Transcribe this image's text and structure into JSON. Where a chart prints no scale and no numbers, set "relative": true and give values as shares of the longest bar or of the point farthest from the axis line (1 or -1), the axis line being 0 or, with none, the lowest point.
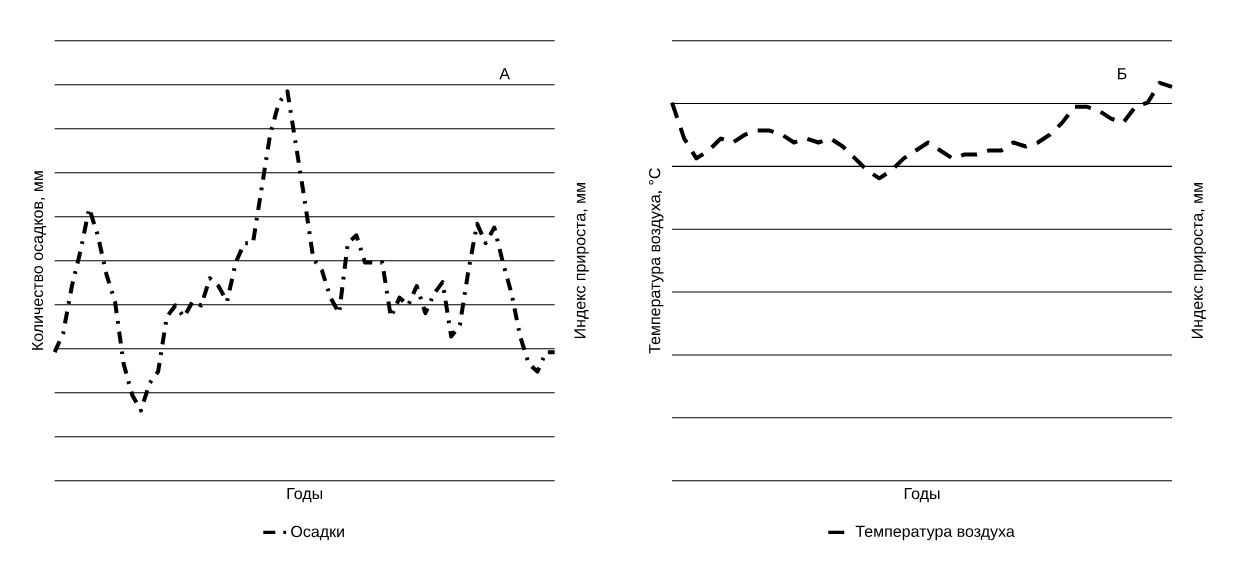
{
  "chart_data": [
    {
      "type": "line",
      "title": "А",
      "xlabel": "Годы",
      "ylabel": "Количество осадков, мм",
      "y2label": "Индекс прироста, мм",
      "relative": true,
      "grid": "y",
      "legend": "bottom",
      "line_style": "dashdot",
      "categories": [
        null,
        null,
        null,
        null,
        null,
        null,
        null,
        null,
        null,
        null,
        null,
        null,
        null,
        null,
        null,
        null,
        null,
        null,
        null,
        null,
        null,
        null,
        null,
        null,
        null,
        null,
        null,
        null,
        null,
        null,
        null,
        null,
        null,
        null,
        null,
        null,
        null,
        null,
        null,
        null,
        null,
        null,
        null,
        null,
        null,
        null,
        null,
        null,
        null,
        null,
        null,
        null,
        null,
        null,
        null,
        null,
        null,
        null,
        null
      ],
      "series": [
        {
          "name": "Осадки",
          "color": "#000000",
          "values": [
            0.33,
            0.38,
            0.5,
            0.59,
            0.7,
            0.63,
            0.53,
            0.46,
            0.3,
            0.22,
            0.18,
            0.25,
            0.28,
            0.42,
            0.45,
            0.42,
            0.46,
            0.45,
            0.52,
            0.5,
            0.46,
            0.56,
            0.61,
            0.61,
            0.75,
            0.89,
            0.97,
            1,
            0.86,
            0.72,
            0.57,
            0.54,
            0.47,
            0.43,
            0.61,
            0.63,
            0.56,
            0.56,
            0.56,
            0.42,
            0.47,
            0.45,
            0.5,
            0.43,
            0.48,
            0.51,
            0.37,
            0.4,
            0.54,
            0.66,
            0.61,
            0.65,
            0.56,
            0.48,
            0.37,
            0.3,
            0.28,
            0.33,
            0.33
          ]
        }
      ]
    },
    {
      "type": "line",
      "title": "Б",
      "xlabel": "Годы",
      "ylabel": "Температура воздуха, °C",
      "y2label": "Индекс прироста, мм",
      "relative": true,
      "grid": "y",
      "legend": "bottom",
      "line_style": "dashed",
      "categories": [
        null,
        null,
        null,
        null,
        null,
        null,
        null,
        null,
        null,
        null,
        null,
        null,
        null,
        null,
        null,
        null,
        null,
        null,
        null,
        null,
        null,
        null,
        null,
        null,
        null,
        null,
        null,
        null,
        null,
        null,
        null,
        null,
        null,
        null,
        null,
        null,
        null,
        null,
        null,
        null,
        null,
        null
      ],
      "series": [
        {
          "name": "Температура воздуха",
          "color": "#000000",
          "values": [
            0.95,
            0.86,
            0.81,
            0.83,
            0.86,
            0.85,
            0.87,
            0.88,
            0.88,
            0.87,
            0.85,
            0.86,
            0.85,
            0.86,
            0.84,
            0.81,
            0.78,
            0.76,
            0.78,
            0.81,
            0.83,
            0.85,
            0.83,
            0.81,
            0.82,
            0.82,
            0.83,
            0.83,
            0.85,
            0.84,
            0.85,
            0.87,
            0.9,
            0.94,
            0.94,
            0.93,
            0.91,
            0.9,
            0.94,
            0.95,
            1,
            0.99
          ]
        }
      ]
    }
  ]
}
